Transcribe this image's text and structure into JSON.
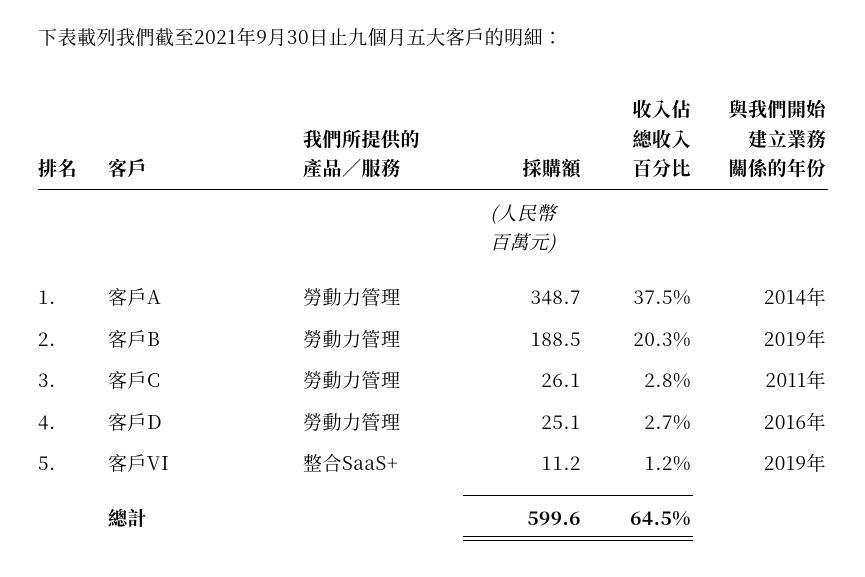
{
  "intro": "下表載列我們截至2021年9月30日止九個月五大客戶的明細：",
  "headers": {
    "rank": "排名",
    "customer": "客戶",
    "product_l1": "我們所提供的",
    "product_l2": "產品／服務",
    "amount": "採購額",
    "pct_l1": "收入佔",
    "pct_l2": "總收入",
    "pct_l3": "百分比",
    "year_l1": "與我們開始",
    "year_l2": "建立業務",
    "year_l3": "關係的年份"
  },
  "unit_l1": "(人民幣",
  "unit_l2": "百萬元)",
  "rows": [
    {
      "rank": "1.",
      "customer": "客戶A",
      "product": "勞動力管理",
      "amount": "348.7",
      "pct": "37.5%",
      "year": "2014年"
    },
    {
      "rank": "2.",
      "customer": "客戶B",
      "product": "勞動力管理",
      "amount": "188.5",
      "pct": "20.3%",
      "year": "2019年"
    },
    {
      "rank": "3.",
      "customer": "客戶C",
      "product": "勞動力管理",
      "amount": "26.1",
      "pct": "2.8%",
      "year": "2011年"
    },
    {
      "rank": "4.",
      "customer": "客戶D",
      "product": "勞動力管理",
      "amount": "25.1",
      "pct": "2.7%",
      "year": "2016年"
    },
    {
      "rank": "5.",
      "customer": "客戶VI",
      "product": "整合SaaS+",
      "amount": "11.2",
      "pct": "1.2%",
      "year": "2019年"
    }
  ],
  "total": {
    "label": "總計",
    "amount": "599.6",
    "pct": "64.5%"
  },
  "style": {
    "text_color": "#000000",
    "background_color": "#ffffff",
    "font_size_body": 19,
    "font_weight_header": 700,
    "rule_color": "#000000"
  }
}
